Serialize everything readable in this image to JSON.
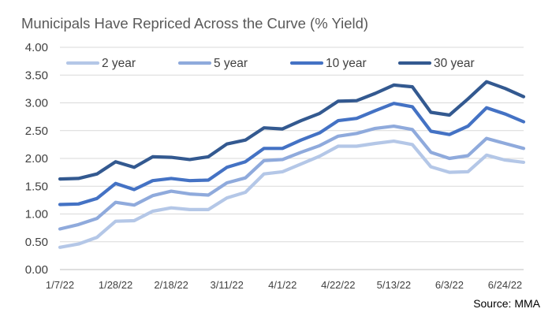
{
  "chart_data": {
    "type": "line",
    "title": "Municipals Have Repriced Across the Curve (% Yield)",
    "source": "Source: MMA",
    "ylim": [
      0,
      4
    ],
    "y_ticks": [
      "0.00",
      "0.50",
      "1.00",
      "1.50",
      "2.00",
      "2.50",
      "3.00",
      "3.50",
      "4.00"
    ],
    "y_tick_values": [
      0,
      0.5,
      1,
      1.5,
      2,
      2.5,
      3,
      3.5,
      4
    ],
    "x": [
      "1/7/22",
      "1/14/22",
      "1/21/22",
      "1/28/22",
      "2/4/22",
      "2/11/22",
      "2/18/22",
      "2/25/22",
      "3/4/22",
      "3/11/22",
      "3/18/22",
      "3/25/22",
      "4/1/22",
      "4/8/22",
      "4/15/22",
      "4/22/22",
      "4/29/22",
      "5/6/22",
      "5/13/22",
      "5/20/22",
      "5/27/22",
      "6/3/22",
      "6/10/22",
      "6/17/22",
      "6/24/22",
      "7/1/22"
    ],
    "x_tick_labels": [
      "1/7/22",
      "1/28/22",
      "2/18/22",
      "3/11/22",
      "4/1/22",
      "4/22/22",
      "5/13/22",
      "6/3/22",
      "6/24/22"
    ],
    "x_tick_indices": [
      0,
      3,
      6,
      9,
      12,
      15,
      18,
      21,
      24
    ],
    "grid": true,
    "legend": "top",
    "series": [
      {
        "name": "2 year",
        "color": "#b4c7e7",
        "values": [
          0.4,
          0.46,
          0.58,
          0.87,
          0.88,
          1.05,
          1.11,
          1.08,
          1.08,
          1.29,
          1.39,
          1.72,
          1.76,
          1.9,
          2.04,
          2.22,
          2.22,
          2.27,
          2.31,
          2.25,
          1.85,
          1.75,
          1.76,
          2.06,
          1.97,
          1.93
        ]
      },
      {
        "name": "5 year",
        "color": "#8faadc",
        "values": [
          0.73,
          0.81,
          0.92,
          1.21,
          1.16,
          1.33,
          1.41,
          1.36,
          1.34,
          1.56,
          1.65,
          1.96,
          1.98,
          2.11,
          2.23,
          2.4,
          2.45,
          2.54,
          2.58,
          2.52,
          2.11,
          2.0,
          2.05,
          2.36,
          2.27,
          2.18
        ]
      },
      {
        "name": "10 year",
        "color": "#4472c4",
        "values": [
          1.17,
          1.18,
          1.28,
          1.55,
          1.44,
          1.6,
          1.64,
          1.6,
          1.61,
          1.84,
          1.94,
          2.18,
          2.18,
          2.33,
          2.46,
          2.68,
          2.72,
          2.86,
          2.99,
          2.93,
          2.49,
          2.43,
          2.58,
          2.91,
          2.8,
          2.66
        ]
      },
      {
        "name": "30 year",
        "color": "#335990",
        "values": [
          1.63,
          1.64,
          1.72,
          1.94,
          1.84,
          2.03,
          2.02,
          1.98,
          2.03,
          2.26,
          2.33,
          2.55,
          2.53,
          2.68,
          2.81,
          3.03,
          3.04,
          3.17,
          3.32,
          3.29,
          2.83,
          2.78,
          3.07,
          3.38,
          3.26,
          3.11
        ]
      }
    ]
  }
}
